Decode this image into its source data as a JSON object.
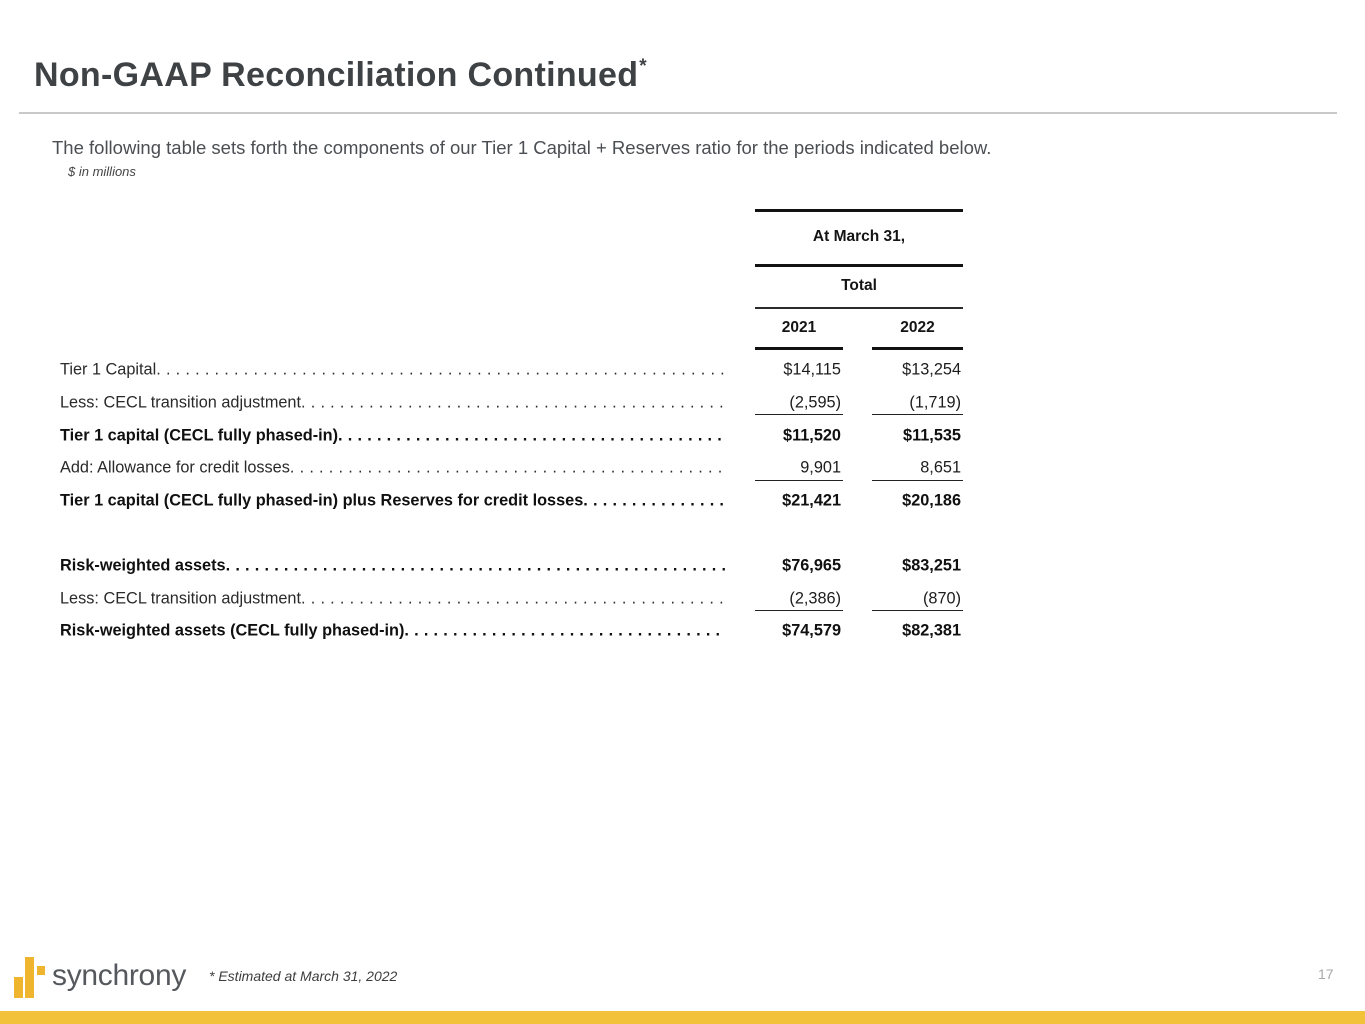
{
  "header": {
    "title": "Non-GAAP Reconciliation Continued",
    "title_superscript": "*",
    "subtitle": "The following table sets forth the components of our Tier 1 Capital + Reserves ratio for the periods indicated below.",
    "units_note": "$ in millions"
  },
  "table": {
    "col_group_top": "At March 31,",
    "col_group_sub": "Total",
    "columns": [
      "2021",
      "2022"
    ],
    "rows": [
      {
        "label": "Tier 1 Capital",
        "v2021": "$14,115",
        "v2022": "$13,254"
      },
      {
        "label": "Less: CECL transition adjustment",
        "v2021": "(2,595)",
        "v2022": "(1,719)"
      },
      {
        "label": "Tier 1 capital (CECL fully phased-in)",
        "v2021": "$11,520",
        "v2022": "$11,535"
      },
      {
        "label": "Add: Allowance for credit losses",
        "v2021": "9,901",
        "v2022": "8,651"
      },
      {
        "label": "Tier 1 capital (CECL fully phased-in) plus Reserves for credit losses",
        "v2021": "$21,421",
        "v2022": "$20,186"
      },
      {
        "label": "Risk-weighted assets",
        "v2021": "$76,965",
        "v2022": "$83,251"
      },
      {
        "label": "Less: CECL transition adjustment",
        "v2021": "(2,386)",
        "v2022": "(870)"
      },
      {
        "label": "Risk-weighted assets (CECL fully phased-in)",
        "v2021": "$74,579",
        "v2022": "$82,381"
      }
    ]
  },
  "footer": {
    "logo_text": "synchrony",
    "footnote": "* Estimated at March 31, 2022",
    "page_number": "17"
  },
  "colors": {
    "brand_gold_bar": "#F2C23B",
    "logo_gold": "#F0B52E",
    "wordmark_gray": "#55585C"
  }
}
